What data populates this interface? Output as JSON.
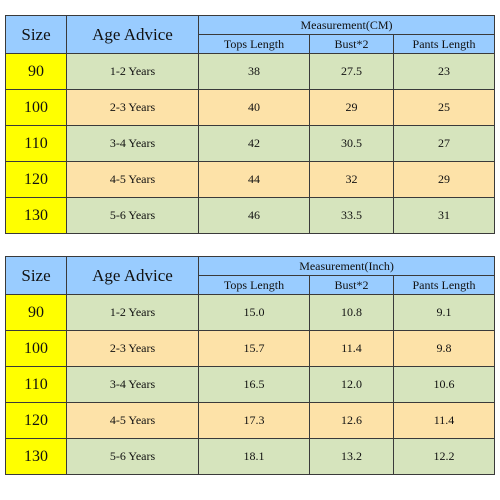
{
  "tables": [
    {
      "header": {
        "size": "Size",
        "age": "Age Advice",
        "measurement": "Measurement(CM)",
        "columns": [
          "Tops Length",
          "Bust*2",
          "Pants Length"
        ]
      },
      "rows": [
        {
          "size": "90",
          "age": "1-2 Years",
          "tops": "38",
          "bust": "27.5",
          "pants": "23"
        },
        {
          "size": "100",
          "age": "2-3 Years",
          "tops": "40",
          "bust": "29",
          "pants": "25"
        },
        {
          "size": "110",
          "age": "3-4 Years",
          "tops": "42",
          "bust": "30.5",
          "pants": "27"
        },
        {
          "size": "120",
          "age": "4-5 Years",
          "tops": "44",
          "bust": "32",
          "pants": "29"
        },
        {
          "size": "130",
          "age": "5-6 Years",
          "tops": "46",
          "bust": "33.5",
          "pants": "31"
        }
      ]
    },
    {
      "header": {
        "size": "Size",
        "age": "Age Advice",
        "measurement": "Measurement(Inch)",
        "columns": [
          "Tops Length",
          "Bust*2",
          "Pants Length"
        ]
      },
      "rows": [
        {
          "size": "90",
          "age": "1-2 Years",
          "tops": "15.0",
          "bust": "10.8",
          "pants": "9.1"
        },
        {
          "size": "100",
          "age": "2-3 Years",
          "tops": "15.7",
          "bust": "11.4",
          "pants": "9.8"
        },
        {
          "size": "110",
          "age": "3-4 Years",
          "tops": "16.5",
          "bust": "12.0",
          "pants": "10.6"
        },
        {
          "size": "120",
          "age": "4-5 Years",
          "tops": "17.3",
          "bust": "12.6",
          "pants": "11.4"
        },
        {
          "size": "130",
          "age": "5-6 Years",
          "tops": "18.1",
          "bust": "13.2",
          "pants": "12.2"
        }
      ]
    }
  ],
  "colors": {
    "header_blue": "#99ccff",
    "size_yellow": "#ffff00",
    "row_green": "#d6e4bd",
    "row_tan": "#fde2a8"
  }
}
